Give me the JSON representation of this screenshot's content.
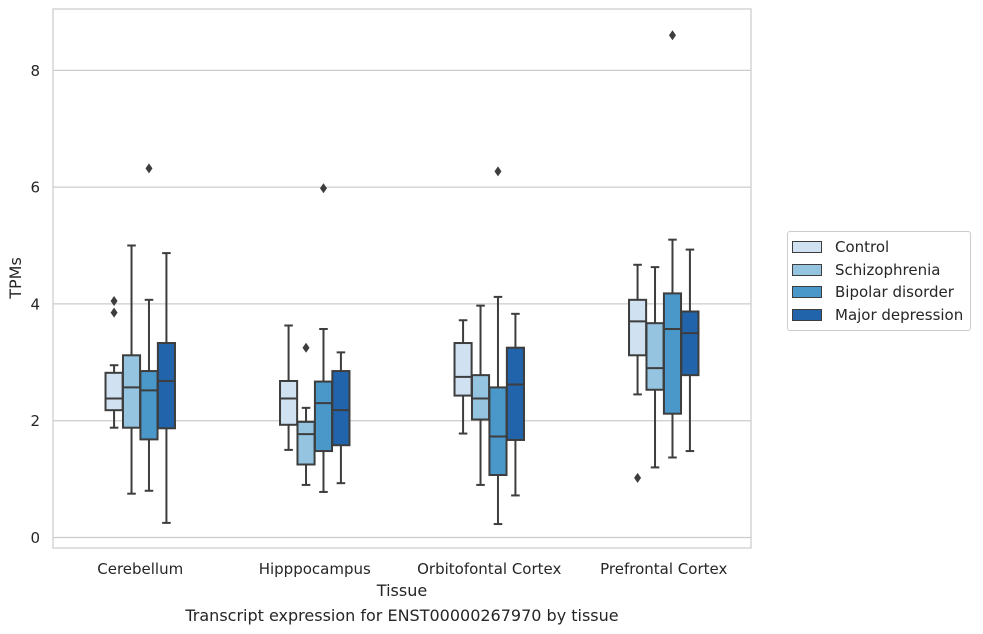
{
  "caption": "Transcript expression for ENST00000267970 by tissue",
  "chart_data": {
    "type": "box",
    "xlabel": "Tissue",
    "ylabel": "TPMs",
    "ylim": [
      -0.18,
      9.05
    ],
    "yticks": [
      0,
      2,
      4,
      6,
      8
    ],
    "grid": true,
    "legend_position": "right",
    "categories": [
      "Cerebellum",
      "Hipppocampus",
      "Orbitofontal Cortex",
      "Prefrontal Cortex"
    ],
    "series": [
      {
        "name": "Control",
        "color": "#d0e1f2",
        "boxes": [
          {
            "whisker_low": 1.88,
            "q1": 2.18,
            "median": 2.38,
            "q3": 2.82,
            "whisker_high": 2.95,
            "outliers": [
              4.05,
              3.85
            ]
          },
          {
            "whisker_low": 1.5,
            "q1": 1.93,
            "median": 2.38,
            "q3": 2.68,
            "whisker_high": 3.63,
            "outliers": []
          },
          {
            "whisker_low": 1.78,
            "q1": 2.43,
            "median": 2.75,
            "q3": 3.33,
            "whisker_high": 3.72,
            "outliers": []
          },
          {
            "whisker_low": 2.45,
            "q1": 3.12,
            "median": 3.7,
            "q3": 4.07,
            "whisker_high": 4.67,
            "outliers": [
              1.02
            ]
          }
        ]
      },
      {
        "name": "Schizophrenia",
        "color": "#94c4df",
        "boxes": [
          {
            "whisker_low": 0.75,
            "q1": 1.88,
            "median": 2.57,
            "q3": 3.12,
            "whisker_high": 5.0,
            "outliers": []
          },
          {
            "whisker_low": 0.9,
            "q1": 1.25,
            "median": 1.77,
            "q3": 1.98,
            "whisker_high": 2.22,
            "outliers": [
              3.25
            ]
          },
          {
            "whisker_low": 0.9,
            "q1": 2.02,
            "median": 2.38,
            "q3": 2.78,
            "whisker_high": 3.97,
            "outliers": []
          },
          {
            "whisker_low": 1.2,
            "q1": 2.53,
            "median": 2.9,
            "q3": 3.67,
            "whisker_high": 4.63,
            "outliers": []
          }
        ]
      },
      {
        "name": "Bipolar disorder",
        "color": "#4a98c9",
        "boxes": [
          {
            "whisker_low": 0.8,
            "q1": 1.68,
            "median": 2.52,
            "q3": 2.85,
            "whisker_high": 4.07,
            "outliers": [
              6.32
            ]
          },
          {
            "whisker_low": 0.78,
            "q1": 1.48,
            "median": 2.3,
            "q3": 2.67,
            "whisker_high": 3.57,
            "outliers": [
              5.98
            ]
          },
          {
            "whisker_low": 0.23,
            "q1": 1.07,
            "median": 1.73,
            "q3": 2.57,
            "whisker_high": 4.12,
            "outliers": [
              6.27
            ]
          },
          {
            "whisker_low": 1.37,
            "q1": 2.12,
            "median": 3.57,
            "q3": 4.18,
            "whisker_high": 5.1,
            "outliers": [
              8.6
            ]
          }
        ]
      },
      {
        "name": "Major depression",
        "color": "#2164ab",
        "boxes": [
          {
            "whisker_low": 0.25,
            "q1": 1.87,
            "median": 2.68,
            "q3": 3.33,
            "whisker_high": 4.87,
            "outliers": []
          },
          {
            "whisker_low": 0.93,
            "q1": 1.58,
            "median": 2.18,
            "q3": 2.85,
            "whisker_high": 3.17,
            "outliers": []
          },
          {
            "whisker_low": 0.72,
            "q1": 1.67,
            "median": 2.62,
            "q3": 3.25,
            "whisker_high": 3.83,
            "outliers": []
          },
          {
            "whisker_low": 1.48,
            "q1": 2.78,
            "median": 3.5,
            "q3": 3.87,
            "whisker_high": 4.93,
            "outliers": []
          }
        ]
      }
    ]
  }
}
